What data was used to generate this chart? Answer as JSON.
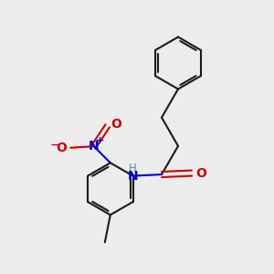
{
  "background_color": "#ececec",
  "bond_color": "#1a1a1a",
  "N_color": "#0000cc",
  "O_color": "#cc0000",
  "H_color": "#4a9090",
  "figsize": [
    3.0,
    3.0
  ],
  "dpi": 100,
  "xlim": [
    0,
    10
  ],
  "ylim": [
    0,
    10
  ]
}
